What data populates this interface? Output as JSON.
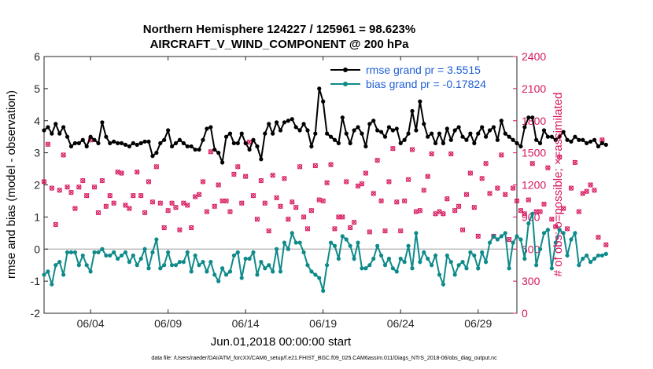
{
  "chart_data": {
    "type": "line",
    "title": "Northern Hemisphere 124227 / 125961 = 98.623%",
    "subtitle": "AIRCRAFT_V_WIND_COMPONENT @ 200 hPa",
    "xlabel": "Jun.01,2018 00:00:00 start",
    "ylabel": "rmse and bias (model - observation)",
    "y2label": "# of obs: o=possible; ×=assimilated",
    "footnote": "data file: /Users/raeder/DAI/ATM_forcXX/CAM6_setup/f.e21.FHIST_BGC.f09_025.CAM6assim.011/Diags_NTrS_2018-06/obs_diag_output.nc",
    "xlim": [
      1,
      31.5
    ],
    "ylim": [
      -2,
      6
    ],
    "y2lim": [
      0,
      2400
    ],
    "x_ticks": [
      4,
      9,
      14,
      19,
      24,
      29
    ],
    "x_tick_labels": [
      "06/04",
      "06/09",
      "06/14",
      "06/19",
      "06/24",
      "06/29"
    ],
    "y_ticks": [
      -2,
      -1,
      0,
      1,
      2,
      3,
      4,
      5,
      6
    ],
    "y2_ticks": [
      0,
      300,
      600,
      900,
      1200,
      1500,
      1800,
      2100,
      2400
    ],
    "colors": {
      "rmse": "#000000",
      "bias": "#0f8a8a",
      "obs": "#d6175f",
      "zero_line": "#b0b0b0",
      "legend_text": "#1f5fd6"
    },
    "x_start_day": 1,
    "x_step_days": 0.25,
    "series": [
      {
        "name": "rmse grand pr = 3.5515",
        "color": "#000000",
        "values": [
          3.7,
          3.8,
          3.6,
          3.9,
          3.6,
          3.8,
          3.5,
          3.2,
          3.3,
          3.3,
          3.4,
          3.2,
          3.5,
          3.4,
          3.3,
          3.95,
          3.5,
          3.3,
          3.35,
          3.3,
          3.3,
          3.25,
          3.2,
          3.3,
          3.25,
          3.3,
          3.35,
          3.35,
          2.9,
          3.0,
          3.3,
          3.4,
          3.7,
          3.2,
          3.3,
          3.4,
          3.3,
          3.2,
          3.2,
          3.1,
          3.1,
          3.4,
          3.75,
          3.8,
          3.1,
          3.0,
          2.7,
          3.5,
          3.6,
          3.3,
          3.3,
          3.6,
          3.3,
          3.1,
          3.4,
          3.2,
          2.8,
          3.6,
          3.9,
          3.6,
          3.95,
          3.7,
          3.95,
          4.0,
          4.05,
          3.8,
          3.7,
          3.9,
          3.7,
          3.2,
          3.6,
          5.0,
          4.6,
          3.6,
          3.5,
          3.4,
          3.3,
          4.1,
          3.6,
          3.3,
          3.7,
          3.8,
          3.6,
          3.2,
          3.9,
          4.0,
          3.7,
          3.65,
          3.5,
          3.8,
          3.7,
          3.75,
          3.3,
          3.4,
          3.6,
          4.3,
          3.7,
          4.6,
          3.9,
          3.5,
          3.6,
          3.3,
          3.6,
          3.3,
          3.75,
          3.4,
          3.7,
          3.8,
          3.5,
          3.4,
          3.6,
          3.3,
          3.6,
          3.8,
          3.5,
          3.7,
          3.8,
          3.4,
          4.0,
          3.6,
          3.5,
          3.4,
          3.3,
          3.2,
          3.8,
          4.1,
          4.1,
          3.4,
          3.3,
          3.7,
          3.5,
          3.5,
          3.4,
          3.5,
          3.65,
          3.4,
          3.35,
          3.5,
          3.4,
          3.4,
          3.3,
          3.35,
          3.4,
          3.2,
          3.3,
          3.25
        ]
      },
      {
        "name": "bias grand pr = -0.17824",
        "color": "#0f8a8a",
        "values": [
          -0.8,
          -0.7,
          -1.1,
          -0.5,
          -0.4,
          -0.8,
          -0.1,
          -0.1,
          -0.1,
          -0.5,
          -0.2,
          -0.5,
          -0.7,
          -0.1,
          -0.1,
          0.0,
          -0.2,
          -0.2,
          -0.1,
          -0.3,
          -0.2,
          -0.1,
          -0.4,
          -0.2,
          -0.5,
          -0.3,
          0.0,
          -0.6,
          -0.1,
          0.3,
          -0.6,
          -0.5,
          -0.1,
          -0.5,
          -0.5,
          -0.4,
          -0.4,
          -0.1,
          -0.7,
          -0.2,
          -0.5,
          -0.4,
          -0.7,
          -0.4,
          -0.8,
          -1.0,
          -0.6,
          -0.8,
          -0.7,
          -0.2,
          -0.1,
          -0.9,
          -0.3,
          -0.3,
          -0.1,
          -0.8,
          -0.4,
          -0.6,
          -0.5,
          -0.7,
          0.0,
          -0.7,
          0.2,
          0.0,
          0.5,
          0.2,
          0.2,
          -0.1,
          -0.5,
          -0.7,
          -0.8,
          -0.9,
          -1.3,
          -0.5,
          0.2,
          0.1,
          -0.3,
          0.4,
          0.3,
          0.1,
          -0.3,
          0.2,
          -0.6,
          -0.6,
          -0.5,
          -0.3,
          0.1,
          -0.2,
          -0.5,
          -0.3,
          -0.6,
          -0.7,
          -0.3,
          -0.4,
          0.1,
          -0.6,
          0.5,
          -0.4,
          -0.1,
          -0.3,
          -0.5,
          -0.2,
          -0.8,
          -1.1,
          -0.2,
          -0.4,
          -0.8,
          -0.5,
          -0.4,
          -0.6,
          -0.1,
          -0.2,
          -0.6,
          -0.1,
          -0.4,
          0.2,
          0.4,
          0.3,
          0.4,
          0.5,
          -0.6,
          0.2,
          0.4,
          0.3,
          -0.3,
          0.8,
          1.1,
          -0.5,
          0.0,
          0.5,
          0.6,
          -0.6,
          0.2,
          0.6,
          0.5,
          -0.2,
          0.3,
          0.5,
          -0.5,
          -0.3,
          -0.2,
          -0.4,
          -0.3,
          -0.2,
          -0.2,
          -0.15
        ]
      }
    ],
    "obs_counts": {
      "name": "# of obs",
      "values": [
        1230,
        1580,
        1170,
        830,
        1150,
        1480,
        1180,
        1130,
        980,
        1180,
        1240,
        1100,
        1620,
        1180,
        940,
        1240,
        1000,
        1100,
        1030,
        1320,
        1310,
        1010,
        980,
        1100,
        1320,
        1100,
        940,
        1230,
        1040,
        1370,
        1030,
        800,
        960,
        1030,
        990,
        780,
        1030,
        1010,
        800,
        1090,
        1110,
        1230,
        950,
        1510,
        1000,
        1200,
        1050,
        1050,
        950,
        1300,
        1370,
        1030,
        1280,
        1600,
        1100,
        880,
        1240,
        1030,
        770,
        1290,
        1080,
        1000,
        1260,
        880,
        1040,
        990,
        1370,
        900,
        790,
        960,
        1380,
        1060,
        1050,
        1220,
        1390,
        790,
        900,
        900,
        1230,
        800,
        850,
        1190,
        1210,
        1310,
        760,
        1120,
        1430,
        1050,
        770,
        1230,
        1540,
        1040,
        770,
        1050,
        1250,
        1530,
        950,
        960,
        1150,
        1280,
        1490,
        930,
        950,
        930,
        1070,
        1490,
        960,
        1000,
        780,
        1110,
        1310,
        990,
        720,
        1260,
        1400,
        1120,
        720,
        1170,
        1480,
        1110,
        690,
        1170,
        1050,
        960,
        930,
        1060,
        1400,
        950,
        950,
        1020,
        1360,
        880,
        810,
        1460,
        980,
        790,
        1170,
        1410,
        950,
        1120,
        1140,
        1200,
        1150,
        710,
        1620,
        640
      ]
    }
  }
}
